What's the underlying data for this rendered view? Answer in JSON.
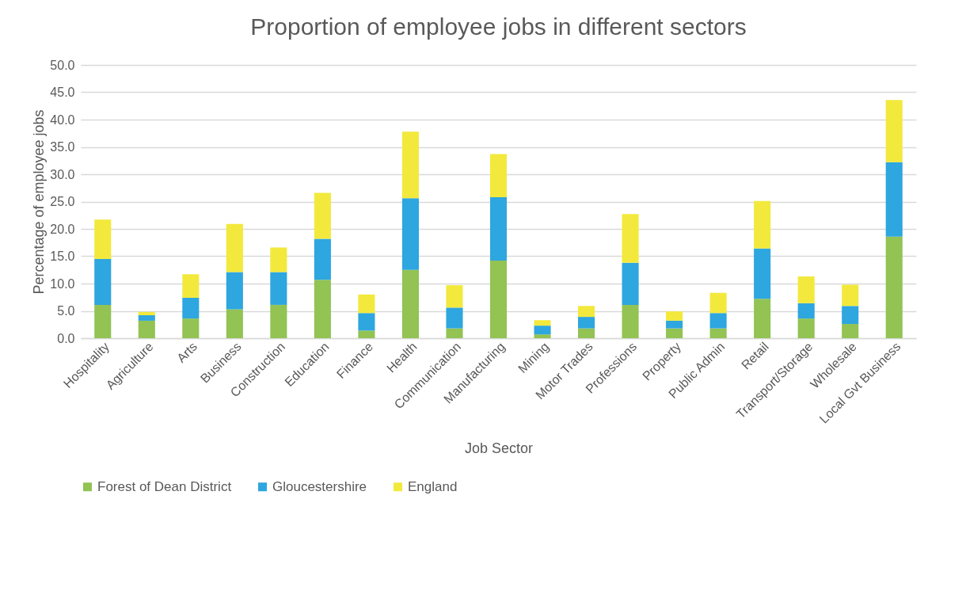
{
  "chart_data": {
    "type": "bar",
    "title": "Proportion of employee jobs in different sectors",
    "xlabel": "Job Sector",
    "ylabel": "Percentage of employee jobs",
    "categories": [
      "Hospitality",
      "Agriculture",
      "Arts",
      "Business",
      "Construction",
      "Education",
      "Finance",
      "Health",
      "Communication",
      "Manufacturing",
      "Mining",
      "Motor Trades",
      "Professions",
      "Property",
      "Public Admin",
      "Retail",
      "Transport/Storage",
      "Wholesale",
      "Local Gvt Business"
    ],
    "series": [
      {
        "name": "Forest of Dean District",
        "color": "#92c353",
        "values": [
          6.1,
          3.2,
          3.6,
          5.3,
          6.1,
          10.7,
          1.4,
          12.5,
          1.8,
          14.2,
          0.7,
          1.8,
          6.1,
          1.8,
          1.8,
          7.2,
          3.6,
          2.6,
          18.6
        ]
      },
      {
        "name": "Gloucestershire",
        "color": "#2ea6df",
        "values": [
          8.4,
          1.0,
          3.8,
          6.8,
          6.0,
          7.5,
          3.2,
          13.1,
          3.8,
          11.6,
          1.6,
          2.1,
          7.7,
          1.4,
          2.8,
          9.2,
          2.8,
          3.3,
          13.6
        ]
      },
      {
        "name": "England",
        "color": "#f2e93c",
        "values": [
          7.2,
          0.6,
          4.3,
          8.8,
          4.5,
          8.4,
          3.4,
          12.2,
          4.1,
          7.9,
          1.0,
          2.0,
          8.9,
          1.7,
          3.7,
          8.7,
          4.9,
          3.9,
          11.4
        ]
      }
    ],
    "stacked": true,
    "ylim": [
      0,
      50
    ],
    "yticks": [
      {
        "value": 0,
        "label": "0.0"
      },
      {
        "value": 5,
        "label": "5.0"
      },
      {
        "value": 10,
        "label": "10.0"
      },
      {
        "value": 15,
        "label": "15.0"
      },
      {
        "value": 20,
        "label": "20.0"
      },
      {
        "value": 25,
        "label": "25.0"
      },
      {
        "value": 30,
        "label": "30.0"
      },
      {
        "value": 35,
        "label": "35.0"
      },
      {
        "value": 40,
        "label": "40.0"
      },
      {
        "value": 45,
        "label": "45.0"
      },
      {
        "value": 50,
        "label": "50.0"
      }
    ],
    "grid": "y",
    "legend": "bottom"
  }
}
